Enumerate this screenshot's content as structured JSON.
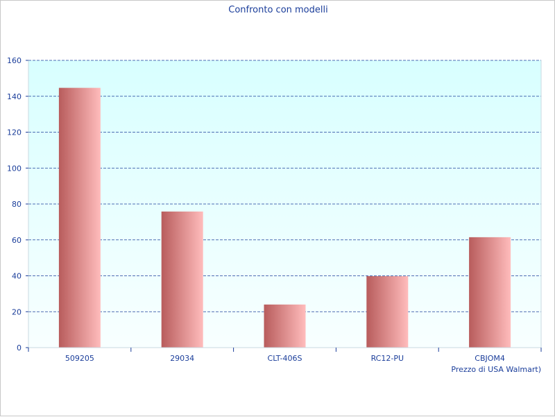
{
  "chart_data": {
    "type": "bar",
    "title": "Confronto con modelli",
    "xlabel": "Prezzo di USA Walmart)",
    "ylabel": "",
    "categories": [
      "509205",
      "29034",
      "CLT-406S",
      "RC12-PU",
      "CBJOM4"
    ],
    "values": [
      144.7,
      75.8,
      24.0,
      39.8,
      61.5
    ],
    "ylim": [
      0,
      160
    ],
    "yticks": [
      0,
      20,
      40,
      60,
      80,
      100,
      120,
      140,
      160
    ],
    "grid": true,
    "colors": {
      "bar_dark": "#b85c5c",
      "bar_light": "#ffbcbc",
      "plot_bg_top": "#d8ffff",
      "plot_bg_bottom": "#f8ffff",
      "grid": "#1a3d9a",
      "text": "#1a3d9a"
    }
  }
}
